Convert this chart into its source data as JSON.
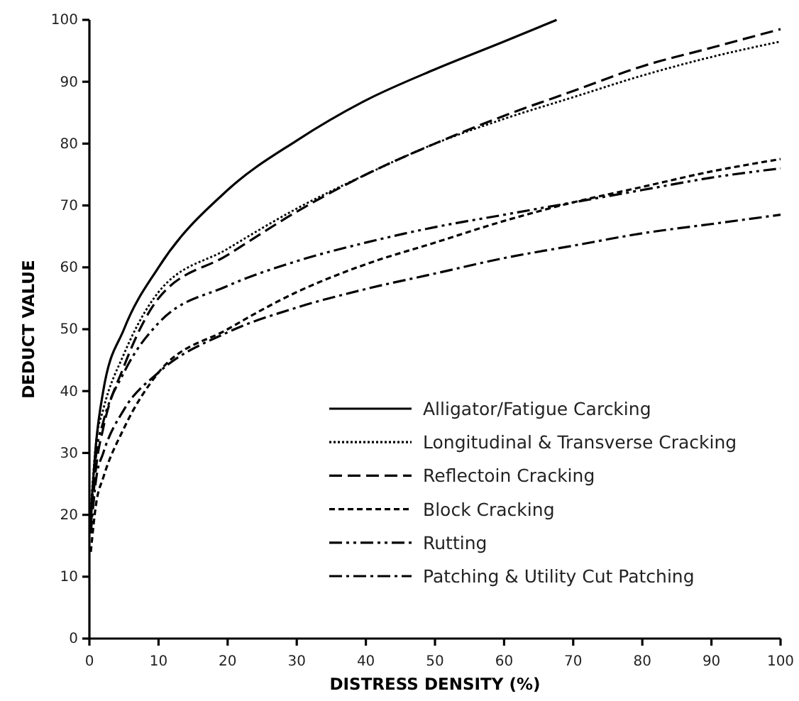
{
  "chart_data": {
    "type": "line",
    "xlabel": "DISTRESS DENSITY (%)",
    "ylabel": "DEDUCT VALUE",
    "xlim": [
      0,
      100
    ],
    "ylim": [
      0,
      100
    ],
    "xticks": [
      0,
      10,
      20,
      30,
      40,
      50,
      60,
      70,
      80,
      90,
      100
    ],
    "yticks": [
      0,
      10,
      20,
      30,
      40,
      50,
      60,
      70,
      80,
      90,
      100
    ],
    "grid": false,
    "legend": "bottom right",
    "marker": "none",
    "series": [
      {
        "name": "Alligator/Fatigue Carcking",
        "color": "#000000",
        "line_style": "solid",
        "x": [
          0.2,
          1,
          2,
          5,
          10,
          20,
          30,
          40,
          50,
          60,
          67.6
        ],
        "values": [
          20,
          32,
          40,
          50,
          60,
          72.5,
          80.5,
          87,
          92,
          96.5,
          100
        ]
      },
      {
        "name": "Longitudinal & Transverse Cracking",
        "color": "#000000",
        "line_style": "dotted",
        "x": [
          0.2,
          1,
          2,
          5,
          10,
          20,
          30,
          40,
          50,
          60,
          70,
          80,
          90,
          100
        ],
        "values": [
          21,
          32,
          37,
          46,
          56,
          63,
          69.5,
          75,
          80,
          84,
          87.5,
          91,
          94,
          96.5
        ]
      },
      {
        "name": "Reflectoin Cracking",
        "color": "#000000",
        "line_style": "dashed",
        "x": [
          0.2,
          1,
          2,
          5,
          10,
          20,
          30,
          40,
          50,
          60,
          70,
          80,
          90,
          100
        ],
        "values": [
          18,
          28,
          34,
          44,
          55,
          62,
          69,
          75,
          80,
          84.5,
          88.5,
          92.5,
          95.5,
          98.5
        ]
      },
      {
        "name": "Block Cracking",
        "color": "#000000",
        "line_style": "shortdash",
        "x": [
          0.2,
          1,
          2,
          5,
          10,
          20,
          30,
          40,
          50,
          60,
          70,
          80,
          90,
          100
        ],
        "values": [
          14,
          22,
          26,
          34,
          43,
          50,
          56,
          60.5,
          64,
          67.5,
          70.5,
          73,
          75.5,
          77.5
        ]
      },
      {
        "name": "Rutting",
        "color": "#000000",
        "line_style": "dashdotdot",
        "x": [
          0.2,
          1,
          2,
          5,
          10,
          20,
          30,
          40,
          50,
          60,
          70,
          80,
          90,
          100
        ],
        "values": [
          19,
          30,
          35,
          43,
          51,
          57,
          61,
          64,
          66.5,
          68.5,
          70.5,
          72.5,
          74.5,
          76
        ]
      },
      {
        "name": "Patching  & Utility Cut Patching",
        "color": "#000000",
        "line_style": "dashdot",
        "x": [
          0.2,
          1,
          2,
          5,
          10,
          20,
          30,
          40,
          50,
          60,
          70,
          80,
          90,
          100
        ],
        "values": [
          17,
          26,
          30,
          37,
          43,
          49.5,
          53.5,
          56.5,
          59,
          61.5,
          63.5,
          65.5,
          67,
          68.5
        ]
      }
    ]
  }
}
